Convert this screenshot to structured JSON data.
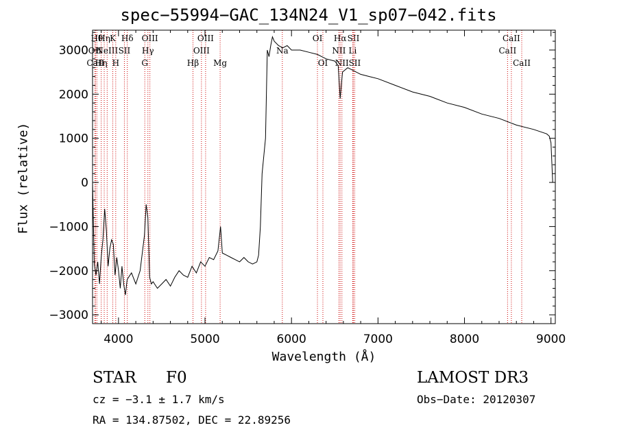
{
  "chart_data": {
    "type": "line",
    "title": "spec−55994−GAC_134N24_V1_sp07−042.fits",
    "xlabel": "Wavelength (Å)",
    "ylabel": "Flux (relative)",
    "xlim": [
      3700,
      9050
    ],
    "ylim": [
      -3200,
      3450
    ],
    "xticks": [
      4000,
      5000,
      6000,
      7000,
      8000,
      9000
    ],
    "xtick_labels": [
      "4000",
      "5000",
      "6000",
      "7000",
      "8000",
      "9000"
    ],
    "yticks": [
      -3000,
      -2000,
      -1000,
      0,
      1000,
      2000,
      3000
    ],
    "ytick_labels": [
      "−3000",
      "−2000",
      "−1000",
      "0",
      "1000",
      "2000",
      "3000"
    ],
    "series": [
      {
        "name": "spectrum",
        "color": "#000000",
        "x": [
          3700,
          3720,
          3740,
          3760,
          3780,
          3800,
          3820,
          3840,
          3860,
          3880,
          3900,
          3920,
          3940,
          3960,
          3980,
          4000,
          4020,
          4040,
          4060,
          4080,
          4100,
          4150,
          4200,
          4250,
          4300,
          4320,
          4340,
          4360,
          4380,
          4400,
          4450,
          4500,
          4550,
          4600,
          4650,
          4700,
          4750,
          4800,
          4850,
          4900,
          4950,
          5000,
          5050,
          5100,
          5150,
          5180,
          5200,
          5250,
          5300,
          5350,
          5400,
          5450,
          5500,
          5550,
          5600,
          5620,
          5640,
          5660,
          5680,
          5700,
          5720,
          5740,
          5760,
          5780,
          5800,
          5850,
          5900,
          5950,
          6000,
          6100,
          6200,
          6300,
          6400,
          6500,
          6540,
          6563,
          6590,
          6650,
          6700,
          6800,
          6900,
          7000,
          7200,
          7400,
          7600,
          7800,
          8000,
          8200,
          8400,
          8600,
          8800,
          8950,
          8980,
          9000,
          9020
        ],
        "y": [
          0,
          -1850,
          -2100,
          -1800,
          -2300,
          -1700,
          -1300,
          -600,
          -1100,
          -1900,
          -1500,
          -1300,
          -1400,
          -2100,
          -1700,
          -2000,
          -2400,
          -1900,
          -2300,
          -2550,
          -2200,
          -2050,
          -2300,
          -2000,
          -1200,
          -500,
          -800,
          -2150,
          -2300,
          -2250,
          -2400,
          -2300,
          -2200,
          -2350,
          -2150,
          -2000,
          -2100,
          -2150,
          -1900,
          -2050,
          -1800,
          -1900,
          -1700,
          -1750,
          -1550,
          -1000,
          -1600,
          -1650,
          -1700,
          -1750,
          -1800,
          -1700,
          -1800,
          -1850,
          -1800,
          -1650,
          -1000,
          200,
          600,
          1000,
          3000,
          2850,
          3100,
          3300,
          3200,
          3100,
          3050,
          3100,
          3000,
          3000,
          2950,
          2900,
          2800,
          2750,
          2650,
          1900,
          2500,
          2600,
          2550,
          2450,
          2400,
          2350,
          2200,
          2050,
          1950,
          1800,
          1700,
          1550,
          1450,
          1300,
          1200,
          1100,
          1050,
          900,
          0
        ]
      }
    ],
    "lines": [
      {
        "wl": 3750,
        "label": "Hθ",
        "row": 0
      },
      {
        "wl": 3727,
        "label": "OII",
        "row": 1
      },
      {
        "wl": 3734,
        "label": "CaII",
        "row": 2
      },
      {
        "wl": 3800,
        "label": "Hη",
        "row": 2
      },
      {
        "wl": 3835,
        "label": "Hη",
        "row": 0
      },
      {
        "wl": 3869,
        "label": "NeIII",
        "row": 1
      },
      {
        "wl": 3934,
        "label": "K",
        "row": 0
      },
      {
        "wl": 3968,
        "label": "H",
        "row": 2
      },
      {
        "wl": 4068,
        "label": "SII",
        "row": 1
      },
      {
        "wl": 4102,
        "label": "Hδ",
        "row": 0
      },
      {
        "wl": 4304,
        "label": "G",
        "row": 2
      },
      {
        "wl": 4340,
        "label": "Hγ",
        "row": 1
      },
      {
        "wl": 4363,
        "label": "OIII",
        "row": 0
      },
      {
        "wl": 4861,
        "label": "Hβ",
        "row": 2
      },
      {
        "wl": 4959,
        "label": "OIII",
        "row": 1
      },
      {
        "wl": 5007,
        "label": "OIII",
        "row": 0
      },
      {
        "wl": 5175,
        "label": "Mg",
        "row": 2
      },
      {
        "wl": 5894,
        "label": "Na",
        "row": 1
      },
      {
        "wl": 6300,
        "label": "OI",
        "row": 0
      },
      {
        "wl": 6363,
        "label": "OI",
        "row": 2
      },
      {
        "wl": 6548,
        "label": "NII",
        "row": 1
      },
      {
        "wl": 6563,
        "label": "Hα",
        "row": 0
      },
      {
        "wl": 6583,
        "label": "NII",
        "row": 2
      },
      {
        "wl": 6707,
        "label": "Li",
        "row": 1
      },
      {
        "wl": 6716,
        "label": "SII",
        "row": 0
      },
      {
        "wl": 6731,
        "label": "SII",
        "row": 2
      },
      {
        "wl": 8498,
        "label": "CaII",
        "row": 1
      },
      {
        "wl": 8542,
        "label": "CaII",
        "row": 0
      },
      {
        "wl": 8662,
        "label": "CaII",
        "row": 2
      }
    ],
    "line_color": "#cc0000"
  },
  "info": {
    "class_label": "STAR",
    "subclass": "F0",
    "survey": "LAMOST DR3",
    "cz": "cz = −3.1 ± 1.7 km/s",
    "obs_date": "Obs−Date: 20120307",
    "coords": "RA = 134.87502, DEC =  22.89256"
  }
}
